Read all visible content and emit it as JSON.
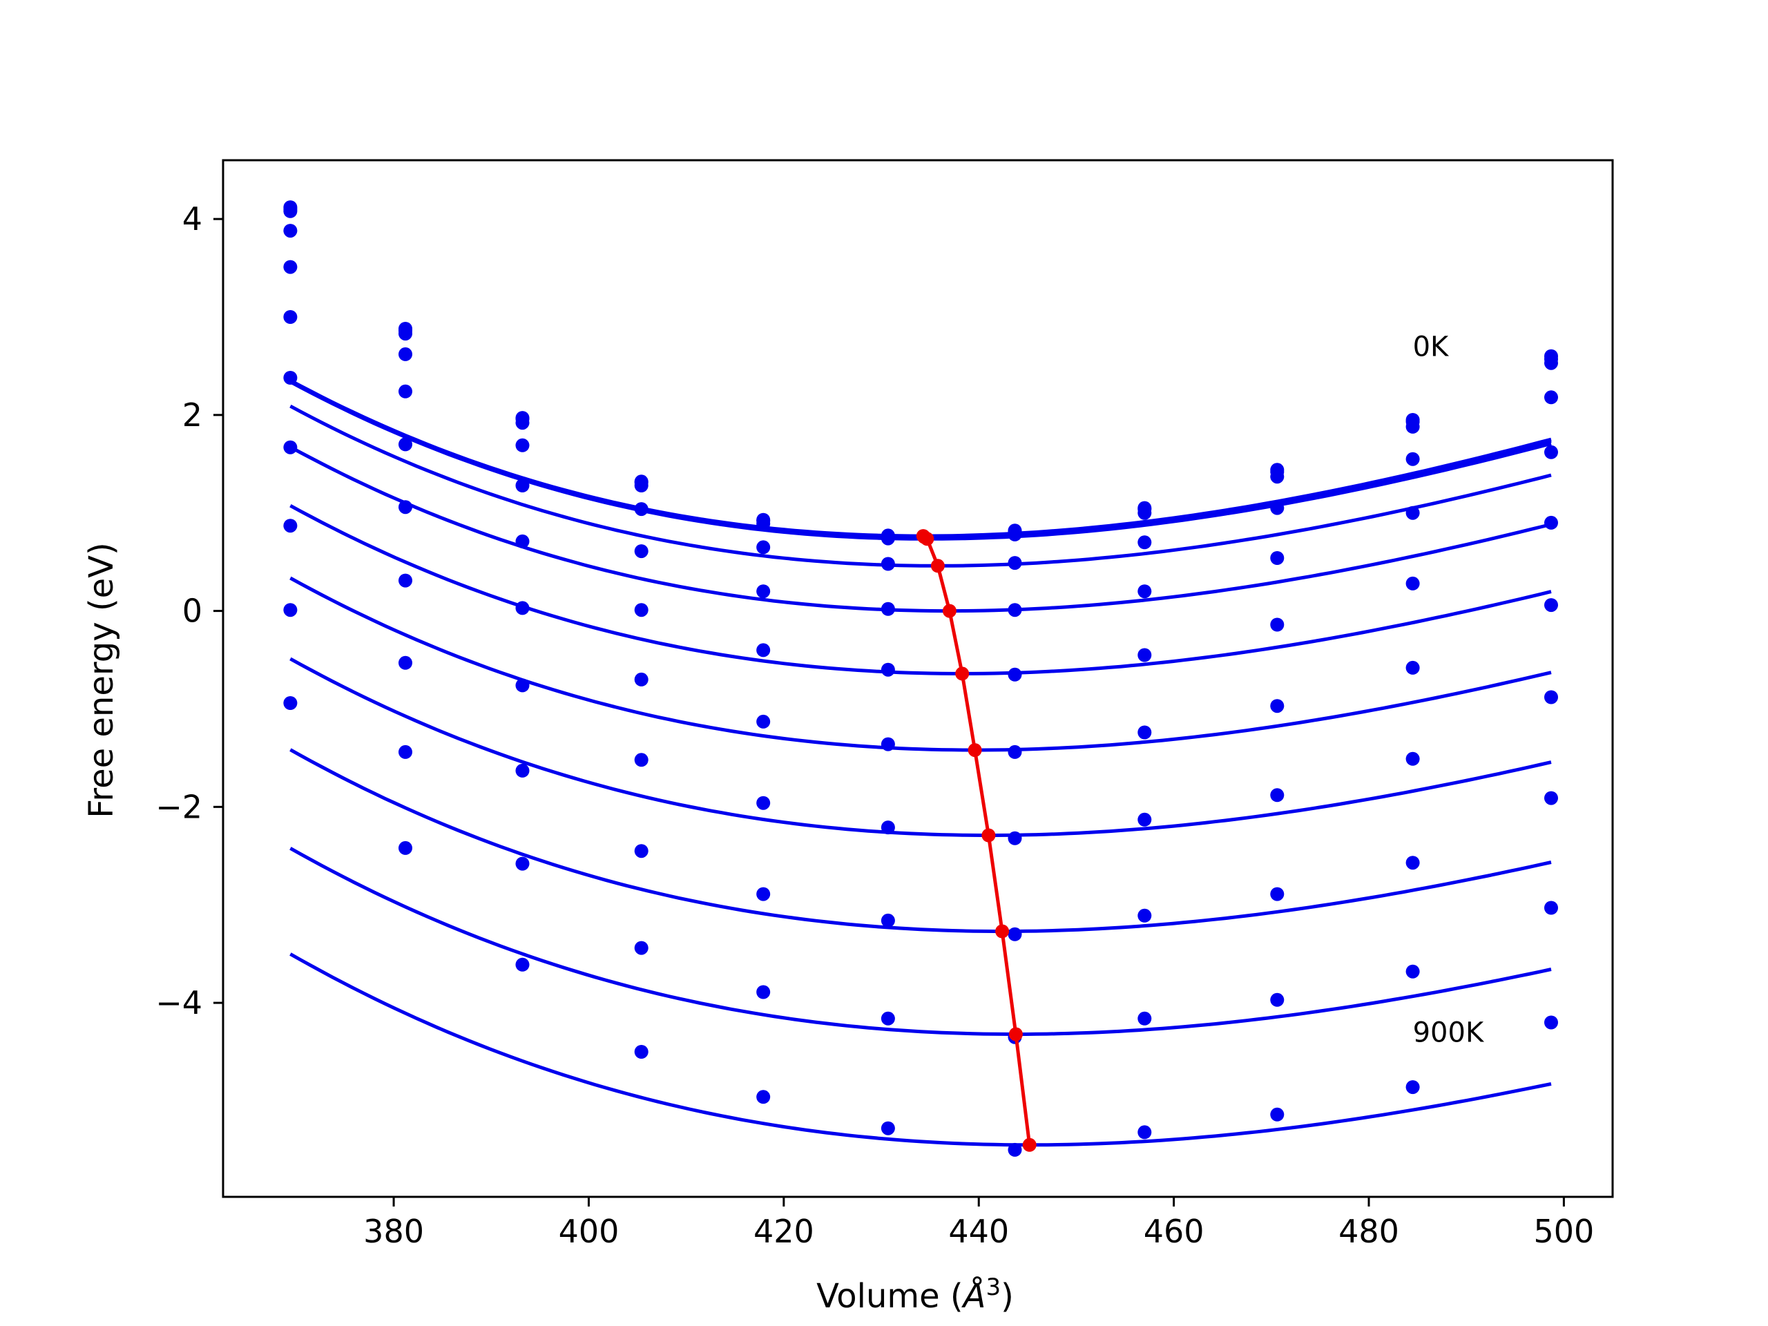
{
  "chart_data": {
    "type": "line",
    "title": "",
    "xlabel": "Volume (Å³)",
    "xlabel_main": "Volume (",
    "xlabel_unit": "Å",
    "xlabel_exp": "3",
    "xlabel_close": ")",
    "ylabel": "Free energy (eV)",
    "xlim": [
      362.5,
      505
    ],
    "ylim": [
      -5.98,
      4.6
    ],
    "x_ticks": [
      380,
      400,
      420,
      440,
      460,
      480,
      500
    ],
    "y_ticks": [
      -4,
      -2,
      0,
      2,
      4
    ],
    "y_tick_labels": [
      "−4",
      "−2",
      "0",
      "2",
      "4"
    ],
    "grid": false,
    "legend": "none",
    "colors": {
      "curves": "#0000ee",
      "minimum_line": "#ee0000"
    },
    "annotations": [
      {
        "text": "0K",
        "x": 484.5,
        "y": 2.7
      },
      {
        "text": "900K",
        "x": 484.5,
        "y": -4.3
      }
    ],
    "volumes": [
      369.4,
      381.2,
      393.2,
      405.4,
      417.9,
      430.7,
      443.7,
      457.0,
      470.6,
      484.5,
      498.7
    ],
    "series": [
      {
        "points": [
          4.12,
          2.88,
          1.97,
          1.32,
          0.93,
          0.77,
          0.82,
          1.05,
          1.44,
          1.95,
          2.6
        ],
        "fit": [
          0.000307,
          434.3,
          0.765
        ]
      },
      {
        "points": [
          4.1,
          2.86,
          1.96,
          1.31,
          0.92,
          0.76,
          0.81,
          1.04,
          1.42,
          1.93,
          2.57
        ],
        "fit": [
          0.000306,
          434.4,
          0.755
        ]
      },
      {
        "points": [
          4.08,
          2.83,
          1.92,
          1.28,
          0.89,
          0.74,
          0.78,
          1.0,
          1.37,
          1.88,
          2.53
        ],
        "fit": [
          0.000306,
          434.7,
          0.735
        ]
      },
      {
        "points": [
          3.88,
          2.62,
          1.69,
          1.04,
          0.65,
          0.48,
          0.49,
          0.7,
          1.05,
          1.55,
          2.18
        ],
        "fit": [
          0.0003,
          435.8,
          0.46
        ]
      },
      {
        "points": [
          3.51,
          2.24,
          1.28,
          0.61,
          0.2,
          0.02,
          0.01,
          0.2,
          0.54,
          1.0,
          1.62
        ],
        "fit": [
          0.000296,
          437.0,
          0.0
        ]
      },
      {
        "points": [
          3.0,
          1.7,
          0.71,
          0.01,
          -0.4,
          -0.6,
          -0.65,
          -0.45,
          -0.14,
          0.28,
          0.9
        ],
        "fit": [
          0.000291,
          438.3,
          -0.64
        ]
      },
      {
        "points": [
          2.38,
          1.06,
          0.03,
          -0.7,
          -1.13,
          -1.36,
          -1.44,
          -1.24,
          -0.97,
          -0.58,
          0.06
        ],
        "fit": [
          0.000286,
          439.6,
          -1.42
        ]
      },
      {
        "points": [
          1.67,
          0.31,
          -0.76,
          -1.52,
          -1.96,
          -2.21,
          -2.32,
          -2.13,
          -1.88,
          -1.51,
          -0.88
        ],
        "fit": [
          0.000281,
          441.0,
          -2.29
        ]
      },
      {
        "points": [
          0.87,
          -0.53,
          -1.63,
          -2.45,
          -2.89,
          -3.16,
          -3.3,
          -3.11,
          -2.89,
          -2.57,
          -1.91
        ],
        "fit": [
          0.000277,
          442.4,
          -3.27
        ]
      },
      {
        "points": [
          0.01,
          -1.44,
          -2.58,
          -3.44,
          -3.89,
          -4.16,
          -4.35,
          -4.16,
          -3.97,
          -3.68,
          -3.03
        ],
        "fit": [
          0.000272,
          443.8,
          -4.32
        ]
      },
      {
        "points": [
          -0.94,
          -2.42,
          -3.61,
          -4.5,
          -4.96,
          -5.28,
          -5.5,
          -5.32,
          -5.14,
          -4.86,
          -4.2
        ],
        "fit": [
          0.000268,
          445.2,
          -5.45
        ]
      }
    ],
    "minimum_line": {
      "x": [
        434.3,
        434.4,
        434.7,
        435.8,
        437.0,
        438.3,
        439.6,
        441.0,
        442.4,
        443.8,
        445.2
      ],
      "y": [
        0.765,
        0.755,
        0.735,
        0.46,
        0.0,
        -0.64,
        -1.42,
        -2.29,
        -3.27,
        -4.32,
        -5.45
      ]
    }
  }
}
